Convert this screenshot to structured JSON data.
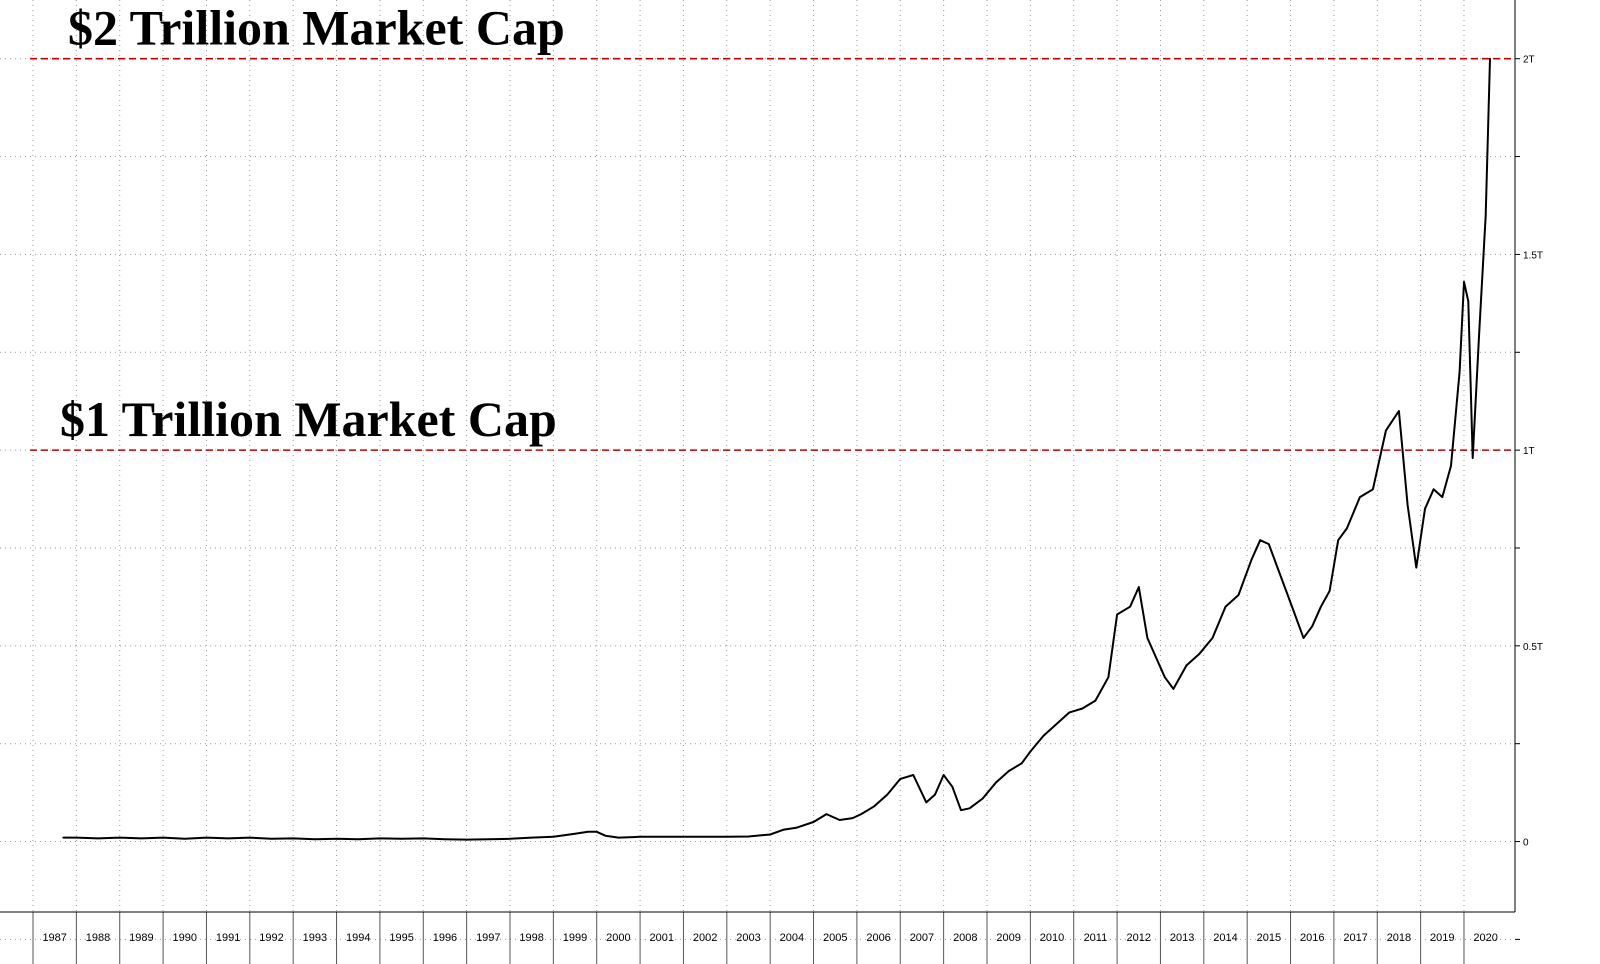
{
  "chart_data": {
    "type": "line",
    "title": "",
    "xlabel": "",
    "ylabel": "",
    "xlim": [
      1987.0,
      2020.6
    ],
    "ylim": [
      -0.18,
      2.15
    ],
    "grid": true,
    "y_ticks": [
      {
        "value": 0,
        "label": "0"
      },
      {
        "value": 0.5,
        "label": "0.5T"
      },
      {
        "value": 1.0,
        "label": "1T"
      },
      {
        "value": 1.5,
        "label": "1.5T"
      },
      {
        "value": 2.0,
        "label": "2T"
      }
    ],
    "x_tick_labels": [
      "1987",
      "1988",
      "1989",
      "1990",
      "1991",
      "1992",
      "1993",
      "1994",
      "1995",
      "1996",
      "1997",
      "1998",
      "1999",
      "2000",
      "2001",
      "2002",
      "2003",
      "2004",
      "2005",
      "2006",
      "2007",
      "2008",
      "2009",
      "2010",
      "2011",
      "2012",
      "2013",
      "2014",
      "2015",
      "2016",
      "2017",
      "2018",
      "2019",
      "2020"
    ],
    "annotations": [
      {
        "text": "$2 Trillion Market Cap",
        "y": 2.0,
        "line_color": "#c00000"
      },
      {
        "text": "$1 Trillion Market Cap",
        "y": 1.0,
        "line_color": "#c00000"
      }
    ],
    "series": [
      {
        "color": "#000000",
        "x": [
          1987.7,
          1988.0,
          1988.5,
          1989.0,
          1989.5,
          1990.0,
          1990.5,
          1991.0,
          1991.5,
          1992.0,
          1992.5,
          1993.0,
          1993.5,
          1994.0,
          1994.5,
          1995.0,
          1995.5,
          1996.0,
          1996.5,
          1997.0,
          1997.5,
          1998.0,
          1998.5,
          1999.0,
          1999.5,
          1999.8,
          2000.0,
          2000.2,
          2000.5,
          2001.0,
          2001.5,
          2002.0,
          2002.5,
          2003.0,
          2003.5,
          2004.0,
          2004.3,
          2004.6,
          2005.0,
          2005.3,
          2005.6,
          2005.9,
          2006.1,
          2006.4,
          2006.7,
          2007.0,
          2007.3,
          2007.6,
          2007.8,
          2008.0,
          2008.2,
          2008.4,
          2008.6,
          2008.9,
          2009.2,
          2009.5,
          2009.8,
          2010.0,
          2010.3,
          2010.6,
          2010.9,
          2011.2,
          2011.5,
          2011.8,
          2012.0,
          2012.3,
          2012.5,
          2012.7,
          2012.9,
          2013.1,
          2013.3,
          2013.6,
          2013.9,
          2014.2,
          2014.5,
          2014.8,
          2015.1,
          2015.3,
          2015.5,
          2015.7,
          2015.9,
          2016.1,
          2016.3,
          2016.5,
          2016.7,
          2016.9,
          2017.1,
          2017.3,
          2017.6,
          2017.9,
          2018.2,
          2018.5,
          2018.7,
          2018.9,
          2019.1,
          2019.3,
          2019.5,
          2019.7,
          2019.9,
          2020.0,
          2020.1,
          2020.2,
          2020.35,
          2020.5,
          2020.6
        ],
        "values": [
          0.01,
          0.01,
          0.008,
          0.01,
          0.008,
          0.01,
          0.007,
          0.01,
          0.008,
          0.01,
          0.007,
          0.008,
          0.006,
          0.007,
          0.006,
          0.008,
          0.007,
          0.008,
          0.006,
          0.005,
          0.006,
          0.007,
          0.01,
          0.012,
          0.02,
          0.025,
          0.025,
          0.015,
          0.01,
          0.012,
          0.012,
          0.012,
          0.012,
          0.012,
          0.013,
          0.018,
          0.03,
          0.035,
          0.05,
          0.07,
          0.055,
          0.06,
          0.07,
          0.09,
          0.12,
          0.16,
          0.17,
          0.1,
          0.12,
          0.17,
          0.14,
          0.08,
          0.085,
          0.11,
          0.15,
          0.18,
          0.2,
          0.23,
          0.27,
          0.3,
          0.33,
          0.34,
          0.36,
          0.42,
          0.58,
          0.6,
          0.65,
          0.52,
          0.47,
          0.42,
          0.39,
          0.45,
          0.48,
          0.52,
          0.6,
          0.63,
          0.72,
          0.77,
          0.76,
          0.7,
          0.64,
          0.58,
          0.52,
          0.55,
          0.6,
          0.64,
          0.77,
          0.8,
          0.88,
          0.9,
          1.05,
          1.1,
          0.86,
          0.7,
          0.85,
          0.9,
          0.88,
          0.96,
          1.2,
          1.43,
          1.38,
          0.98,
          1.3,
          1.6,
          2.0
        ]
      }
    ]
  }
}
